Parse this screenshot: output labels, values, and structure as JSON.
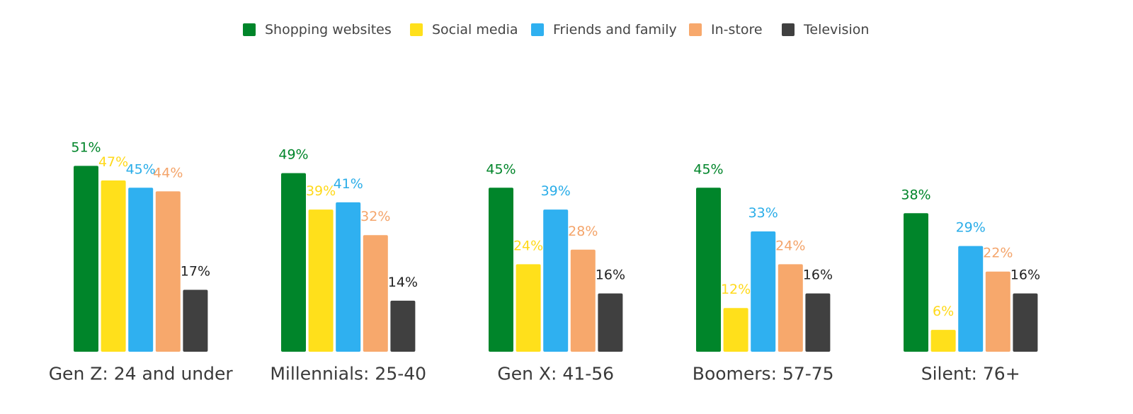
{
  "chart_data": {
    "type": "bar",
    "categories": [
      "Gen Z: 24 and under",
      "Millennials: 25-40",
      "Gen X: 41-56",
      "Boomers: 57-75",
      "Silent: 76+"
    ],
    "series": [
      {
        "name": "Shopping websites",
        "color": "#00852a",
        "values": [
          51,
          49,
          45,
          45,
          38
        ],
        "labels": [
          "51%",
          "49%",
          "45%",
          "45%",
          "38%"
        ]
      },
      {
        "name": "Social media",
        "color": "#ffe01b",
        "values": [
          47,
          39,
          24,
          12,
          6
        ],
        "labels": [
          "47%",
          "39%",
          "24%",
          "12%",
          "6%"
        ]
      },
      {
        "name": "Friends and family",
        "color": "#2fb0f0",
        "values": [
          45,
          41,
          39,
          33,
          29
        ],
        "labels": [
          "45%",
          "41%",
          "39%",
          "33%",
          "29%"
        ]
      },
      {
        "name": "In-store",
        "color": "#f7a86c",
        "values": [
          44,
          32,
          28,
          24,
          22
        ],
        "labels": [
          "44%",
          "32%",
          "28%",
          "24%",
          "22%"
        ]
      },
      {
        "name": "Television",
        "color": "#404040",
        "values": [
          17,
          14,
          16,
          16,
          16
        ],
        "labels": [
          "17%",
          "14%",
          "16%",
          "16%",
          "16%"
        ]
      }
    ],
    "label_colors": [
      "#00852a",
      "#ffd91a",
      "#2aade8",
      "#f4a46a",
      "#222222"
    ],
    "ylim": [
      0,
      60
    ],
    "legend_position": "top-center",
    "grid": false
  }
}
